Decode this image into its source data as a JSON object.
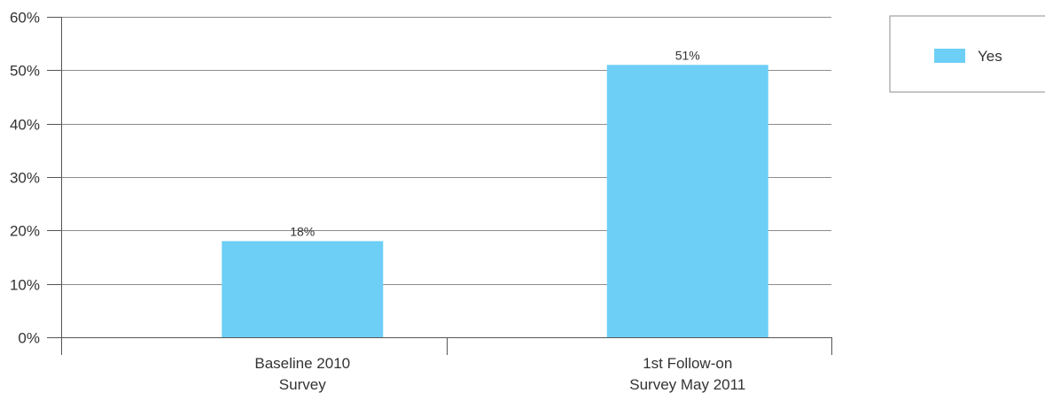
{
  "chart_data": {
    "type": "bar",
    "categories": [
      [
        "Baseline 2010",
        "Survey"
      ],
      [
        "1st Follow-on",
        "Survey May 2011"
      ]
    ],
    "series": [
      {
        "name": "Yes",
        "color": "#6dcff6",
        "values": [
          18,
          51
        ],
        "labels": [
          "18%",
          "51%"
        ]
      }
    ],
    "ylim": [
      0,
      60
    ],
    "yticks": [
      0,
      10,
      20,
      30,
      40,
      50,
      60
    ],
    "ytick_labels": [
      "0%",
      "10%",
      "20%",
      "30%",
      "40%",
      "50%",
      "60%"
    ],
    "grid": true,
    "legend_position": "top-right"
  }
}
